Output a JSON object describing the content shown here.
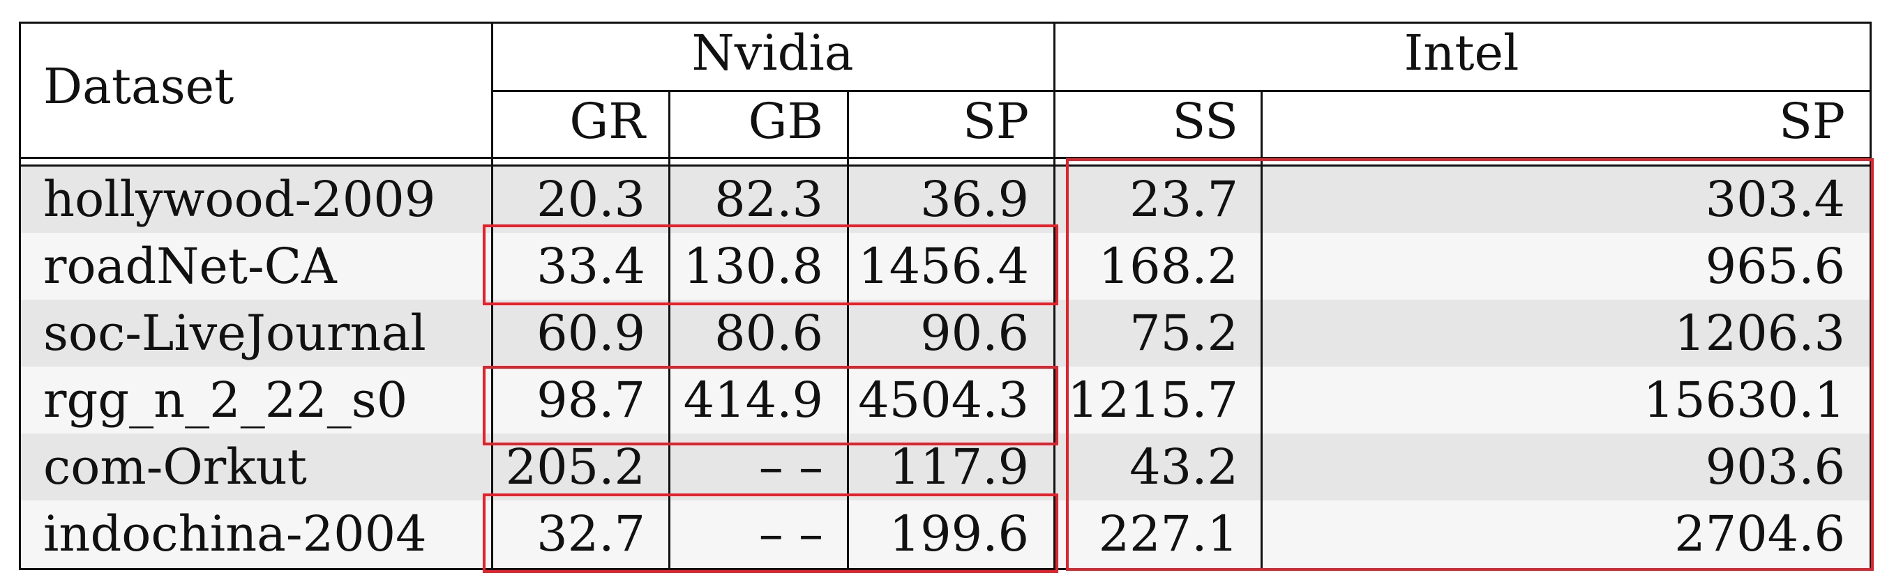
{
  "table": {
    "corner_header": "Dataset",
    "groups": [
      {
        "label": "Nvidia",
        "columns": [
          "GR",
          "GB",
          "SP"
        ]
      },
      {
        "label": "Intel",
        "columns": [
          "SS",
          "SP"
        ]
      }
    ],
    "rows": [
      {
        "dataset": "hollywood-2009",
        "values": [
          "20.3",
          "82.3",
          "36.9",
          "23.7",
          "303.4"
        ]
      },
      {
        "dataset": "roadNet-CA",
        "values": [
          "33.4",
          "130.8",
          "1456.4",
          "168.2",
          "965.6"
        ]
      },
      {
        "dataset": "soc-LiveJournal",
        "values": [
          "60.9",
          "80.6",
          "90.6",
          "75.2",
          "1206.3"
        ]
      },
      {
        "dataset": "rgg_n_2_22_s0",
        "values": [
          "98.7",
          "414.9",
          "4504.3",
          "1215.7",
          "15630.1"
        ]
      },
      {
        "dataset": "com-Orkut",
        "values": [
          "205.2",
          "– –",
          "117.9",
          "43.2",
          "903.6"
        ]
      },
      {
        "dataset": "indochina-2004",
        "values": [
          "32.7",
          "– –",
          "199.6",
          "227.1",
          "2704.6"
        ]
      }
    ]
  },
  "colors": {
    "stripe_dark": "#e6e6e6",
    "stripe_light": "#f6f6f6",
    "border": "#111111",
    "highlight": "#e3222b"
  }
}
